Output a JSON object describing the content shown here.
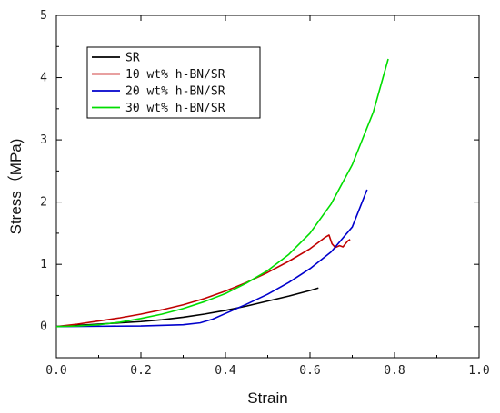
{
  "chart_data": {
    "type": "line",
    "title": "",
    "xlabel": "Strain",
    "ylabel": "Stress（MPa)",
    "xlim": [
      0.0,
      1.0
    ],
    "ylim": [
      -0.5,
      5
    ],
    "x_ticks": [
      0.0,
      0.2,
      0.4,
      0.6,
      0.8,
      1.0
    ],
    "x_tick_labels": [
      "0.0",
      "0.2",
      "0.4",
      "0.6",
      "0.8",
      "1.0"
    ],
    "y_ticks": [
      0,
      1,
      2,
      3,
      4,
      5
    ],
    "y_tick_labels": [
      "0",
      "1",
      "2",
      "3",
      "4",
      "5"
    ],
    "grid": false,
    "legend_position": "top-left",
    "series": [
      {
        "name": "SR",
        "color": "#000000",
        "points": [
          [
            0,
            0
          ],
          [
            0.05,
            0.02
          ],
          [
            0.1,
            0.04
          ],
          [
            0.15,
            0.06
          ],
          [
            0.2,
            0.08
          ],
          [
            0.25,
            0.11
          ],
          [
            0.3,
            0.15
          ],
          [
            0.35,
            0.2
          ],
          [
            0.4,
            0.26
          ],
          [
            0.45,
            0.33
          ],
          [
            0.5,
            0.41
          ],
          [
            0.55,
            0.49
          ],
          [
            0.6,
            0.58
          ],
          [
            0.62,
            0.62
          ]
        ]
      },
      {
        "name": "10 wt% h-BN/SR",
        "color": "#c00000",
        "points": [
          [
            0,
            0
          ],
          [
            0.05,
            0.04
          ],
          [
            0.1,
            0.09
          ],
          [
            0.15,
            0.14
          ],
          [
            0.2,
            0.2
          ],
          [
            0.25,
            0.27
          ],
          [
            0.3,
            0.35
          ],
          [
            0.35,
            0.45
          ],
          [
            0.4,
            0.57
          ],
          [
            0.45,
            0.71
          ],
          [
            0.5,
            0.87
          ],
          [
            0.55,
            1.05
          ],
          [
            0.6,
            1.25
          ],
          [
            0.635,
            1.43
          ],
          [
            0.645,
            1.47
          ],
          [
            0.652,
            1.33
          ],
          [
            0.66,
            1.27
          ],
          [
            0.67,
            1.3
          ],
          [
            0.678,
            1.28
          ],
          [
            0.685,
            1.34
          ],
          [
            0.69,
            1.38
          ],
          [
            0.695,
            1.4
          ]
        ]
      },
      {
        "name": "20 wt% h-BN/SR",
        "color": "#0000cc",
        "points": [
          [
            0,
            0
          ],
          [
            0.1,
            0.005
          ],
          [
            0.2,
            0.01
          ],
          [
            0.3,
            0.03
          ],
          [
            0.34,
            0.06
          ],
          [
            0.37,
            0.12
          ],
          [
            0.4,
            0.21
          ],
          [
            0.45,
            0.36
          ],
          [
            0.5,
            0.52
          ],
          [
            0.55,
            0.71
          ],
          [
            0.6,
            0.93
          ],
          [
            0.65,
            1.2
          ],
          [
            0.7,
            1.6
          ],
          [
            0.735,
            2.2
          ]
        ]
      },
      {
        "name": "30 wt% h-BN/SR",
        "color": "#00dd00",
        "points": [
          [
            0,
            0
          ],
          [
            0.05,
            0.01
          ],
          [
            0.1,
            0.03
          ],
          [
            0.15,
            0.07
          ],
          [
            0.2,
            0.13
          ],
          [
            0.25,
            0.2
          ],
          [
            0.3,
            0.29
          ],
          [
            0.35,
            0.4
          ],
          [
            0.4,
            0.53
          ],
          [
            0.45,
            0.7
          ],
          [
            0.5,
            0.9
          ],
          [
            0.55,
            1.16
          ],
          [
            0.6,
            1.5
          ],
          [
            0.65,
            1.97
          ],
          [
            0.7,
            2.6
          ],
          [
            0.75,
            3.45
          ],
          [
            0.785,
            4.3
          ]
        ]
      }
    ]
  }
}
